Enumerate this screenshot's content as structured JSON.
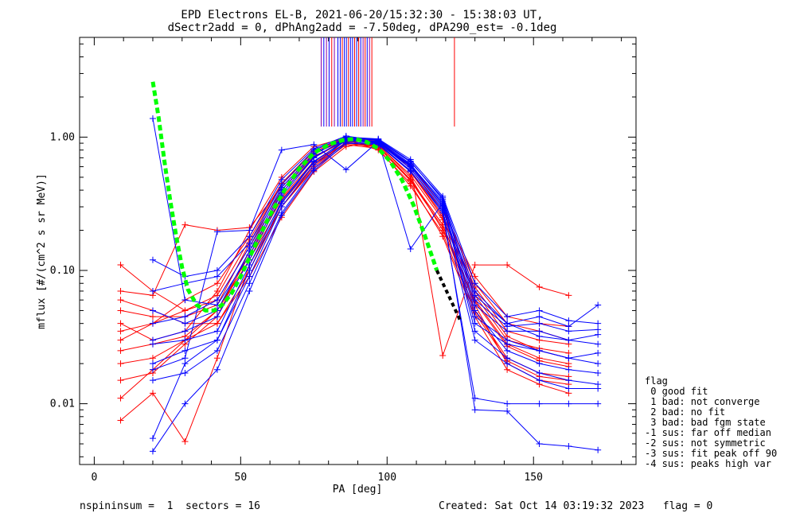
{
  "chart_data": {
    "type": "line",
    "title": "EPD Electrons EL-B, 2021-06-20/15:32:30 - 15:38:03 UT,",
    "subtitle": "dSectr2add = 0, dPhAng2add = -7.50deg, dPA290_est=  -0.1deg",
    "xlabel": "PA [deg]",
    "ylabel": "mflux [#/(cm^2 s sr MeV)]",
    "xlim": [
      -5,
      185
    ],
    "ylim": [
      0.0035,
      5.6
    ],
    "y_scale": "log",
    "x_ticks": [
      {
        "value": 0,
        "label": "0"
      },
      {
        "value": 50,
        "label": "50"
      },
      {
        "value": 100,
        "label": "100"
      },
      {
        "value": 150,
        "label": "150"
      }
    ],
    "y_ticks": [
      {
        "value": 0.01,
        "label": "0.01"
      },
      {
        "value": 0.1,
        "label": "0.10"
      },
      {
        "value": 1.0,
        "label": "1.00"
      }
    ],
    "colors": {
      "red": "#ff0000",
      "blue": "#0000ff",
      "fit": "#00ff00",
      "fit_tail": "#000000",
      "marker_lines": "#8800aa"
    },
    "pa_bins": [
      9,
      20,
      31,
      42,
      53,
      64,
      75,
      86,
      97,
      108,
      119,
      130,
      141,
      152,
      162,
      172
    ],
    "series": [
      {
        "color": "red",
        "values": [
          0.011,
          0.018,
          0.03,
          0.05,
          0.12,
          0.32,
          0.62,
          0.9,
          0.86,
          0.48,
          0.22,
          0.055,
          0.02,
          0.015,
          0.014,
          null
        ]
      },
      {
        "color": "red",
        "values": [
          0.03,
          0.04,
          0.06,
          0.08,
          0.18,
          0.45,
          0.8,
          0.98,
          0.9,
          0.55,
          0.25,
          0.07,
          0.032,
          0.025,
          0.022,
          null
        ]
      },
      {
        "color": "red",
        "values": [
          0.06,
          0.05,
          0.04,
          0.04,
          0.09,
          0.25,
          0.55,
          0.85,
          0.92,
          0.62,
          0.3,
          0.08,
          0.04,
          0.035,
          0.03,
          null
        ]
      },
      {
        "color": "red",
        "values": [
          0.11,
          0.07,
          0.05,
          0.06,
          0.15,
          0.38,
          0.7,
          0.95,
          0.8,
          0.45,
          0.18,
          0.045,
          0.018,
          0.014,
          0.012,
          null
        ]
      },
      {
        "color": "red",
        "values": [
          0.04,
          0.03,
          0.035,
          0.07,
          0.2,
          0.5,
          0.85,
          0.99,
          0.88,
          0.5,
          0.2,
          0.06,
          0.028,
          0.022,
          0.02,
          null
        ]
      },
      {
        "color": "red",
        "values": [
          0.02,
          0.022,
          0.03,
          0.04,
          0.1,
          0.3,
          0.6,
          0.92,
          0.94,
          0.58,
          0.28,
          0.09,
          0.045,
          0.04,
          0.038,
          null
        ]
      },
      {
        "color": "red",
        "values": [
          0.015,
          0.017,
          0.028,
          0.045,
          0.14,
          0.35,
          0.66,
          0.9,
          0.84,
          0.47,
          0.21,
          0.05,
          0.022,
          0.017,
          0.016,
          null
        ]
      },
      {
        "color": "red",
        "values": [
          0.0075,
          0.012,
          0.0052,
          0.022,
          0.11,
          0.3,
          0.58,
          0.88,
          0.82,
          0.43,
          0.19,
          0.048,
          0.021,
          0.016,
          0.015,
          null
        ]
      },
      {
        "color": "red",
        "values": [
          0.07,
          0.065,
          0.22,
          0.2,
          0.21,
          0.42,
          0.75,
          0.96,
          0.95,
          0.6,
          0.023,
          0.11,
          0.11,
          0.075,
          0.065,
          null
        ]
      },
      {
        "color": "red",
        "values": [
          0.05,
          0.045,
          0.045,
          0.055,
          0.16,
          0.4,
          0.72,
          0.93,
          0.87,
          0.52,
          0.24,
          0.065,
          0.03,
          0.026,
          0.024,
          null
        ]
      },
      {
        "color": "red",
        "values": [
          0.025,
          0.028,
          0.032,
          0.05,
          0.13,
          0.34,
          0.64,
          0.91,
          0.85,
          0.48,
          0.22,
          0.058,
          0.027,
          0.021,
          0.019,
          null
        ]
      },
      {
        "color": "red",
        "values": [
          0.035,
          0.04,
          0.05,
          0.065,
          0.17,
          0.44,
          0.78,
          0.97,
          0.9,
          0.55,
          0.26,
          0.075,
          0.035,
          0.03,
          0.028,
          null
        ]
      },
      {
        "color": "blue",
        "values": [
          null,
          0.0044,
          0.01,
          0.018,
          0.07,
          0.26,
          0.56,
          0.9,
          0.88,
          0.55,
          0.28,
          0.03,
          0.02,
          0.015,
          0.013,
          0.013
        ]
      },
      {
        "color": "blue",
        "values": [
          null,
          0.0055,
          0.02,
          0.03,
          0.09,
          0.3,
          0.62,
          0.95,
          0.9,
          0.6,
          0.3,
          0.045,
          0.03,
          0.025,
          0.022,
          0.024
        ]
      },
      {
        "color": "blue",
        "values": [
          null,
          0.02,
          0.025,
          0.03,
          0.1,
          0.32,
          0.65,
          0.96,
          0.92,
          0.62,
          0.33,
          0.055,
          0.035,
          0.035,
          0.03,
          0.033
        ]
      },
      {
        "color": "blue",
        "values": [
          null,
          0.03,
          0.035,
          0.045,
          0.12,
          0.36,
          0.7,
          0.98,
          0.95,
          0.65,
          0.35,
          0.07,
          0.04,
          0.045,
          0.038,
          0.055
        ]
      },
      {
        "color": "blue",
        "values": [
          null,
          0.05,
          0.04,
          0.05,
          0.14,
          0.4,
          0.74,
          0.99,
          0.96,
          0.66,
          0.34,
          0.06,
          0.038,
          0.04,
          0.035,
          0.036
        ]
      },
      {
        "color": "blue",
        "values": [
          null,
          0.07,
          0.08,
          0.09,
          0.16,
          0.44,
          0.8,
          1.0,
          0.97,
          0.68,
          0.36,
          0.08,
          0.045,
          0.05,
          0.042,
          0.04
        ]
      },
      {
        "color": "blue",
        "values": [
          null,
          0.12,
          0.09,
          0.1,
          0.18,
          0.48,
          0.82,
          1.02,
          0.94,
          0.63,
          0.31,
          0.05,
          0.025,
          0.02,
          0.018,
          0.017
        ]
      },
      {
        "color": "blue",
        "values": [
          null,
          0.015,
          0.017,
          0.025,
          0.08,
          0.27,
          0.58,
          0.92,
          0.89,
          0.56,
          0.27,
          0.011,
          0.01,
          0.01,
          0.01,
          0.01
        ]
      },
      {
        "color": "blue",
        "values": [
          null,
          0.028,
          0.03,
          0.035,
          0.11,
          0.33,
          0.66,
          0.94,
          0.91,
          0.58,
          0.29,
          0.009,
          0.0088,
          0.005,
          0.0048,
          0.0045
        ]
      },
      {
        "color": "blue",
        "values": [
          null,
          0.04,
          0.045,
          0.06,
          0.15,
          0.42,
          0.76,
          0.97,
          0.93,
          0.61,
          0.32,
          0.035,
          0.022,
          0.017,
          0.015,
          0.014
        ]
      },
      {
        "color": "blue",
        "values": [
          null,
          1.38,
          0.06,
          0.055,
          0.13,
          0.38,
          0.71,
          0.96,
          0.92,
          0.6,
          0.3,
          0.04,
          0.028,
          0.025,
          0.022,
          0.02
        ]
      },
      {
        "color": "blue",
        "values": [
          null,
          0.018,
          0.022,
          0.195,
          0.2,
          0.8,
          0.88,
          0.57,
          0.93,
          0.145,
          0.32,
          0.065,
          0.04,
          0.032,
          0.03,
          0.028
        ]
      }
    ],
    "fit_curve": {
      "x": [
        20,
        22,
        24,
        26,
        28,
        30,
        32,
        35,
        38,
        41,
        44,
        47,
        50,
        55,
        60,
        65,
        70,
        75,
        80,
        85,
        89,
        93,
        97,
        101,
        105,
        109,
        113,
        117
      ],
      "y": [
        2.6,
        1.4,
        0.65,
        0.33,
        0.18,
        0.105,
        0.072,
        0.055,
        0.05,
        0.05,
        0.056,
        0.068,
        0.09,
        0.155,
        0.26,
        0.4,
        0.58,
        0.76,
        0.88,
        0.95,
        0.97,
        0.92,
        0.82,
        0.66,
        0.48,
        0.31,
        0.18,
        0.1
      ],
      "tail_x": [
        117,
        121,
        125
      ],
      "tail_y": [
        0.1,
        0.065,
        0.042
      ]
    },
    "marker_lines": {
      "x": [
        77.5,
        78.4,
        79.3,
        80.2,
        81.1,
        82.0,
        83.2,
        84.0,
        84.7,
        85.4,
        86.1,
        86.8,
        87.5,
        88.2,
        88.9,
        89.6,
        90.3,
        91.0,
        91.8,
        92.5,
        93.2,
        94.0,
        94.8,
        123.0
      ],
      "colors": [
        "#8800aa",
        "#0000ff",
        "#8800aa",
        "#0000ff",
        "#ff0000",
        "#8800aa",
        "#0000ff",
        "#0000ff",
        "#ff0000",
        "#0000ff",
        "#0000ff",
        "#ff0000",
        "#0000ff",
        "#0000ff",
        "#ff0000",
        "#0000ff",
        "#ff0000",
        "#0000ff",
        "#8800aa",
        "#ff0000",
        "#0000ff",
        "#8800aa",
        "#ff0000",
        "#ff0000"
      ],
      "y_from": 1.2,
      "y_to": 5.6
    },
    "legend": {
      "position": "right",
      "title": "flag",
      "entries": [
        " 0 good fit",
        " 1 bad: not converge",
        " 2 bad: no fit",
        " 3 bad: bad fgm state",
        "-1 sus: far off median",
        "-2 sus: not symmetric",
        "-3 sus: fit peak off 90",
        "-4 sus: peaks high var"
      ]
    },
    "grid": false
  },
  "footer": {
    "left": "nspininsum =  1  sectors = 16",
    "right": "Created: Sat Oct 14 03:19:32 2023   flag = 0"
  }
}
